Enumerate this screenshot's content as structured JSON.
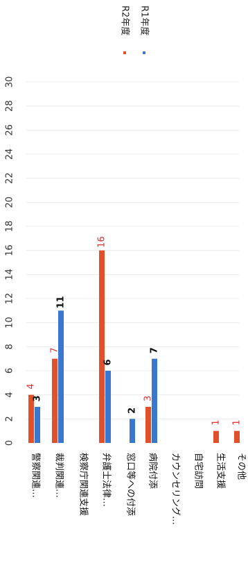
{
  "chart_data": {
    "type": "bar",
    "orientation": "rotated-90-clockwise",
    "categories": [
      "警察関連…",
      "裁判関連…",
      "検察庁関連支援",
      "弁護士法律…",
      "窓口等への付添",
      "病院付添",
      "カウンセリング…",
      "自宅訪問",
      "生活支援",
      "その他"
    ],
    "series": [
      {
        "name": "R2年度",
        "color": "#e0502a",
        "label_color": "#e03030",
        "values": [
          4,
          7,
          0,
          16,
          0,
          3,
          0,
          0,
          1,
          1
        ],
        "labels": [
          "4",
          "7",
          "",
          "16",
          "",
          "3",
          "",
          "",
          "1",
          "1"
        ]
      },
      {
        "name": "R1年度",
        "color": "#3a78d0",
        "label_color": "#111111",
        "values": [
          3,
          11,
          0,
          6,
          2,
          7,
          0,
          0,
          0,
          0
        ],
        "labels": [
          "3",
          "11",
          "",
          "6",
          "2",
          "7",
          "",
          "",
          "",
          ""
        ]
      }
    ],
    "ylim": [
      0,
      30
    ],
    "yticks": [
      "0",
      "2",
      "4",
      "6",
      "8",
      "10",
      "12",
      "14",
      "16",
      "18",
      "20",
      "22",
      "24",
      "26",
      "28",
      "30"
    ],
    "legend": "top-right",
    "grid": true
  }
}
